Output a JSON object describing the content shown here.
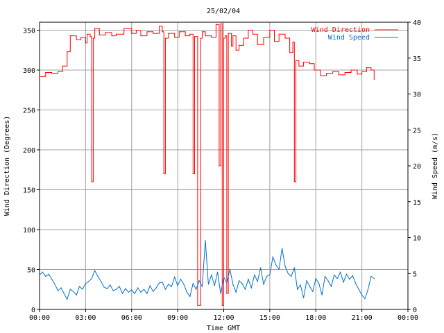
{
  "chart_data": {
    "type": "line",
    "title": "25/02/04",
    "xlabel": "Time GMT",
    "ylabel_left": "Wind Direction (Degrees)",
    "ylabel_right": "Wind Speed (m/s)",
    "xlim_hours": [
      0,
      24
    ],
    "x_tick_labels": [
      "00:00",
      "03:00",
      "06:00",
      "09:00",
      "12:00",
      "15:00",
      "18:00",
      "21:00",
      "00:00"
    ],
    "y_left_lim": [
      0,
      360
    ],
    "y_left_ticks": [
      0,
      50,
      100,
      150,
      200,
      250,
      300,
      350
    ],
    "y_right_lim": [
      0,
      40
    ],
    "y_right_ticks": [
      0,
      5,
      10,
      15,
      20,
      25,
      30,
      35,
      40
    ],
    "grid": true,
    "legend_position": "top-right",
    "colors": {
      "direction": "#ff0000",
      "speed": "#0070d0",
      "grid": "#a0a0a0"
    },
    "series": [
      {
        "name": "Wind Direction",
        "axis": "left",
        "x_hours": [
          0.0,
          0.4,
          0.8,
          1.2,
          1.5,
          1.8,
          2.0,
          2.4,
          2.7,
          3.0,
          3.1,
          3.3,
          3.4,
          3.5,
          3.6,
          3.9,
          4.3,
          4.7,
          5.0,
          5.5,
          6.0,
          6.3,
          6.6,
          7.0,
          7.4,
          7.8,
          8.0,
          8.1,
          8.2,
          8.4,
          8.8,
          9.1,
          9.5,
          9.8,
          10.0,
          10.1,
          10.3,
          10.5,
          10.6,
          10.8,
          11.2,
          11.5,
          11.7,
          11.8,
          11.9,
          12.0,
          12.1,
          12.2,
          12.3,
          12.5,
          12.6,
          12.8,
          13.0,
          13.3,
          13.6,
          13.9,
          14.2,
          14.6,
          15.0,
          15.3,
          15.6,
          16.0,
          16.3,
          16.5,
          16.6,
          16.7,
          16.9,
          17.2,
          17.6,
          17.9,
          18.3,
          18.7,
          19.1,
          19.5,
          19.9,
          20.3,
          20.7,
          21.0,
          21.3,
          21.6,
          21.8
        ],
        "values": [
          292,
          297,
          296,
          298,
          305,
          323,
          343,
          338,
          341,
          334,
          345,
          342,
          160,
          340,
          352,
          344,
          347,
          343,
          345,
          352,
          346,
          350,
          343,
          348,
          346,
          355,
          348,
          170,
          340,
          346,
          341,
          348,
          343,
          345,
          170,
          342,
          5,
          340,
          348,
          343,
          341,
          357,
          180,
          358,
          5,
          340,
          343,
          20,
          346,
          330,
          343,
          325,
          331,
          340,
          350,
          345,
          332,
          341,
          350,
          336,
          345,
          340,
          322,
          335,
          160,
          312,
          305,
          310,
          308,
          300,
          293,
          296,
          298,
          294,
          297,
          300,
          295,
          298,
          303,
          300,
          288
        ]
      },
      {
        "name": "Wind Speed",
        "axis": "right",
        "x_hours": [
          0.0,
          0.2,
          0.4,
          0.6,
          0.8,
          1.0,
          1.2,
          1.4,
          1.6,
          1.8,
          2.0,
          2.2,
          2.4,
          2.6,
          2.8,
          3.0,
          3.2,
          3.4,
          3.6,
          3.8,
          4.0,
          4.2,
          4.4,
          4.6,
          4.8,
          5.0,
          5.2,
          5.4,
          5.6,
          5.8,
          6.0,
          6.2,
          6.4,
          6.6,
          6.8,
          7.0,
          7.2,
          7.4,
          7.6,
          7.8,
          8.0,
          8.2,
          8.4,
          8.6,
          8.8,
          9.0,
          9.2,
          9.4,
          9.6,
          9.8,
          10.0,
          10.2,
          10.4,
          10.6,
          10.8,
          11.0,
          11.2,
          11.4,
          11.6,
          11.8,
          12.0,
          12.2,
          12.4,
          12.6,
          12.8,
          13.0,
          13.2,
          13.4,
          13.6,
          13.8,
          14.0,
          14.2,
          14.4,
          14.6,
          14.8,
          15.0,
          15.2,
          15.4,
          15.6,
          15.8,
          16.0,
          16.2,
          16.4,
          16.6,
          16.8,
          17.0,
          17.2,
          17.4,
          17.6,
          17.8,
          18.0,
          18.2,
          18.4,
          18.6,
          18.8,
          19.0,
          19.2,
          19.4,
          19.6,
          19.8,
          20.0,
          20.2,
          20.4,
          20.6,
          20.8,
          21.0,
          21.2,
          21.4,
          21.6,
          21.8
        ],
        "values": [
          4.8,
          5.2,
          4.6,
          4.9,
          4.2,
          3.5,
          2.6,
          3.0,
          2.2,
          1.4,
          2.8,
          2.5,
          2.0,
          3.2,
          2.8,
          3.6,
          3.9,
          4.3,
          5.4,
          4.6,
          3.9,
          3.1,
          2.9,
          3.4,
          2.6,
          2.8,
          3.2,
          2.2,
          2.9,
          2.4,
          2.7,
          2.2,
          3.0,
          2.4,
          2.8,
          2.2,
          3.3,
          2.5,
          3.0,
          3.7,
          3.8,
          2.8,
          3.5,
          3.2,
          4.5,
          3.3,
          4.2,
          3.5,
          2.4,
          1.8,
          3.6,
          2.8,
          4.0,
          3.2,
          9.6,
          3.5,
          4.8,
          3.3,
          5.2,
          2.2,
          4.5,
          3.7,
          5.6,
          3.5,
          2.4,
          4.0,
          3.6,
          2.8,
          4.2,
          3.0,
          4.8,
          3.9,
          5.8,
          3.5,
          4.6,
          4.8,
          7.3,
          6.2,
          5.6,
          8.5,
          6.0,
          5.0,
          4.6,
          5.8,
          2.8,
          3.4,
          1.6,
          4.0,
          3.2,
          2.5,
          4.3,
          3.6,
          2.0,
          4.6,
          4.0,
          3.2,
          4.8,
          4.3,
          5.2,
          3.8,
          4.9,
          4.2,
          4.7,
          3.6,
          2.8,
          2.0,
          1.5,
          2.8,
          4.6,
          4.3
        ]
      }
    ]
  }
}
